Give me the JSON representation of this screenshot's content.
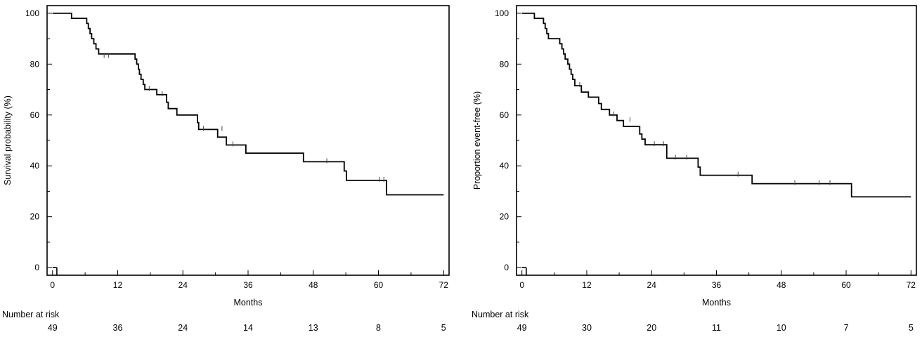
{
  "chart_data": [
    {
      "type": "line",
      "ylabel": "Survival probability (%)",
      "xlabel": "Months",
      "xlim": [
        -1,
        73
      ],
      "ylim": [
        -3,
        103
      ],
      "x_ticks": [
        0,
        12,
        24,
        36,
        48,
        60,
        72
      ],
      "y_ticks": [
        0,
        20,
        40,
        60,
        80,
        100
      ],
      "grid": false,
      "series": [
        {
          "step_points": [
            [
              0,
              100
            ],
            [
              3.5,
              100
            ],
            [
              3.5,
              98
            ],
            [
              6.3,
              98
            ],
            [
              6.3,
              96
            ],
            [
              6.6,
              96
            ],
            [
              6.6,
              94
            ],
            [
              6.9,
              94
            ],
            [
              6.9,
              92
            ],
            [
              7.2,
              92
            ],
            [
              7.2,
              90
            ],
            [
              7.6,
              90
            ],
            [
              7.6,
              88
            ],
            [
              8.0,
              88
            ],
            [
              8.0,
              86
            ],
            [
              8.5,
              86
            ],
            [
              8.5,
              84
            ],
            [
              15.2,
              84
            ],
            [
              15.2,
              82
            ],
            [
              15.5,
              82
            ],
            [
              15.5,
              80
            ],
            [
              15.8,
              80
            ],
            [
              15.8,
              78
            ],
            [
              16.0,
              78
            ],
            [
              16.0,
              76
            ],
            [
              16.3,
              76
            ],
            [
              16.3,
              74
            ],
            [
              16.7,
              74
            ],
            [
              16.7,
              72
            ],
            [
              17.0,
              72
            ],
            [
              17.0,
              70
            ],
            [
              19.2,
              70
            ],
            [
              19.2,
              68
            ],
            [
              21.0,
              68
            ],
            [
              21.0,
              65
            ],
            [
              21.3,
              65
            ],
            [
              21.3,
              62.5
            ],
            [
              22.9,
              62.5
            ],
            [
              22.9,
              60
            ],
            [
              26.7,
              60
            ],
            [
              26.7,
              57
            ],
            [
              26.9,
              57
            ],
            [
              26.9,
              54.3
            ],
            [
              30.4,
              54.3
            ],
            [
              30.4,
              51.3
            ],
            [
              32.0,
              51.3
            ],
            [
              32.0,
              48.2
            ],
            [
              35.6,
              48.2
            ],
            [
              35.6,
              45
            ],
            [
              46.2,
              45
            ],
            [
              46.2,
              41.6
            ],
            [
              53.7,
              41.6
            ],
            [
              53.7,
              38
            ],
            [
              54.1,
              38
            ],
            [
              54.1,
              34.3
            ],
            [
              61.5,
              34.3
            ],
            [
              61.5,
              28.6
            ],
            [
              72,
              28.6
            ]
          ],
          "censor_marks": [
            [
              9.5,
              83
            ],
            [
              10.3,
              83
            ],
            [
              17.8,
              70
            ],
            [
              20.2,
              68
            ],
            [
              27.8,
              54.3
            ],
            [
              31.2,
              54.3
            ],
            [
              33.2,
              48.2
            ],
            [
              50.5,
              41.6
            ],
            [
              60.2,
              34.3
            ],
            [
              61.0,
              34.3
            ]
          ]
        }
      ],
      "risk_table": {
        "title": "Number at risk",
        "times": [
          0,
          12,
          24,
          36,
          48,
          60,
          72
        ],
        "counts": [
          "49",
          "36",
          "24",
          "14",
          "13",
          "8",
          "5"
        ]
      }
    },
    {
      "type": "line",
      "ylabel": "Proportion event-free (%)",
      "xlabel": "Months",
      "xlim": [
        -1,
        73
      ],
      "ylim": [
        -3,
        103
      ],
      "x_ticks": [
        0,
        12,
        24,
        36,
        48,
        60,
        72
      ],
      "y_ticks": [
        0,
        20,
        40,
        60,
        80,
        100
      ],
      "grid": false,
      "series": [
        {
          "step_points": [
            [
              0,
              100
            ],
            [
              2.3,
              100
            ],
            [
              2.3,
              98
            ],
            [
              4.0,
              98
            ],
            [
              4.0,
              96
            ],
            [
              4.3,
              96
            ],
            [
              4.3,
              94
            ],
            [
              4.6,
              94
            ],
            [
              4.6,
              92
            ],
            [
              4.9,
              92
            ],
            [
              4.9,
              90
            ],
            [
              7.0,
              90
            ],
            [
              7.0,
              88
            ],
            [
              7.4,
              88
            ],
            [
              7.4,
              86
            ],
            [
              7.7,
              86
            ],
            [
              7.7,
              84
            ],
            [
              8.0,
              84
            ],
            [
              8.0,
              82
            ],
            [
              8.5,
              82
            ],
            [
              8.5,
              80
            ],
            [
              8.8,
              80
            ],
            [
              8.8,
              78
            ],
            [
              9.1,
              78
            ],
            [
              9.1,
              76
            ],
            [
              9.4,
              76
            ],
            [
              9.4,
              74
            ],
            [
              9.8,
              74
            ],
            [
              9.8,
              71.5
            ],
            [
              11.0,
              71.5
            ],
            [
              11.0,
              69
            ],
            [
              12.3,
              69
            ],
            [
              12.3,
              67
            ],
            [
              14.2,
              67
            ],
            [
              14.2,
              64.5
            ],
            [
              14.7,
              64.5
            ],
            [
              14.7,
              62.2
            ],
            [
              16.2,
              62.2
            ],
            [
              16.2,
              60
            ],
            [
              17.6,
              60
            ],
            [
              17.6,
              57.8
            ],
            [
              18.8,
              57.8
            ],
            [
              18.8,
              55.5
            ],
            [
              21.8,
              55.5
            ],
            [
              21.8,
              52.5
            ],
            [
              22.2,
              52.5
            ],
            [
              22.2,
              50.5
            ],
            [
              22.8,
              50.5
            ],
            [
              22.8,
              48.3
            ],
            [
              26.8,
              48.3
            ],
            [
              26.8,
              43
            ],
            [
              32.6,
              43
            ],
            [
              32.6,
              39.5
            ],
            [
              33.0,
              39.5
            ],
            [
              33.0,
              36.3
            ],
            [
              42.6,
              36.3
            ],
            [
              42.6,
              33
            ],
            [
              61.0,
              33
            ],
            [
              61.0,
              27.8
            ],
            [
              72,
              27.8
            ]
          ],
          "censor_marks": [
            [
              10.7,
              71.5
            ],
            [
              17.0,
              60
            ],
            [
              20.0,
              57.8
            ],
            [
              24.5,
              48.3
            ],
            [
              26.2,
              48.3
            ],
            [
              28.4,
              43
            ],
            [
              30.5,
              43
            ],
            [
              40.0,
              36.3
            ],
            [
              50.5,
              33
            ],
            [
              55.0,
              33
            ],
            [
              57.0,
              33
            ]
          ]
        }
      ],
      "risk_table": {
        "title": "Number at risk",
        "times": [
          0,
          12,
          24,
          36,
          48,
          60,
          72
        ],
        "counts": [
          "49",
          "30",
          "20",
          "11",
          "10",
          "7",
          "5"
        ]
      }
    }
  ]
}
